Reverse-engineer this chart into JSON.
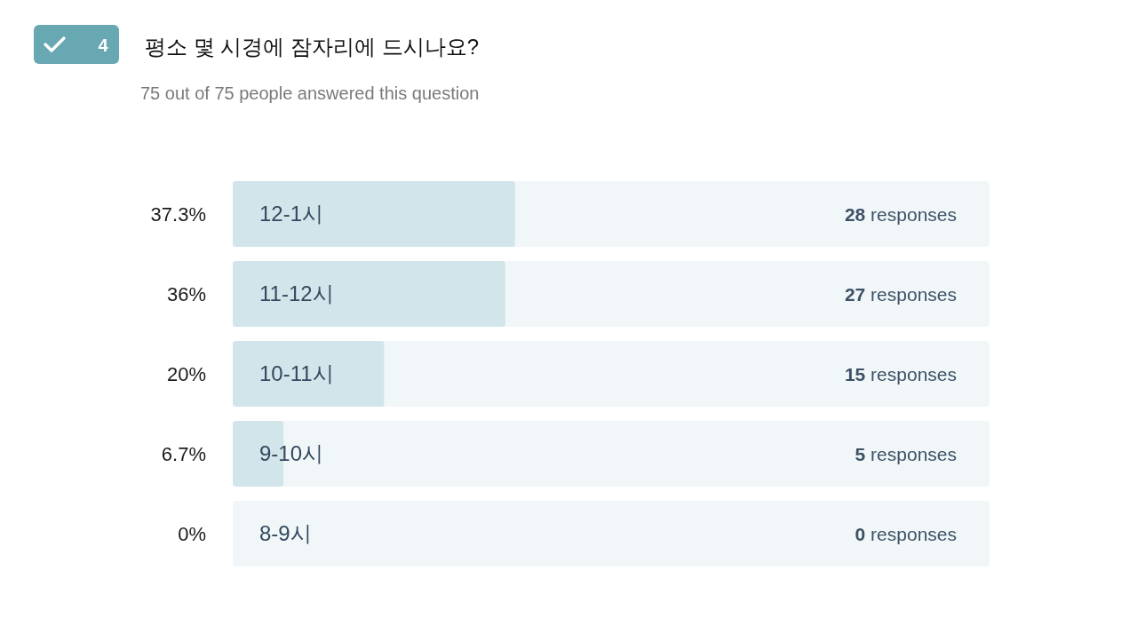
{
  "chart_data": {
    "type": "bar",
    "orientation": "horizontal",
    "title": "평소 몇 시경에 잠자리에 드시나요?",
    "subtitle": "75 out of 75 people answered this question",
    "categories": [
      "12-1시",
      "11-12시",
      "10-11시",
      "9-10시",
      "8-9시"
    ],
    "values": [
      37.3,
      36,
      20,
      6.7,
      0
    ],
    "color": "#d1e5ea",
    "xlim": [
      0,
      100
    ],
    "value_labels": [
      "37.3%",
      "36%",
      "20%",
      "6.7%",
      "0%"
    ],
    "annotations": [
      "4",
      "**28** responses",
      "**27** responses",
      "**15** responses",
      "**5** responses",
      "**0** responses"
    ]
  }
}
